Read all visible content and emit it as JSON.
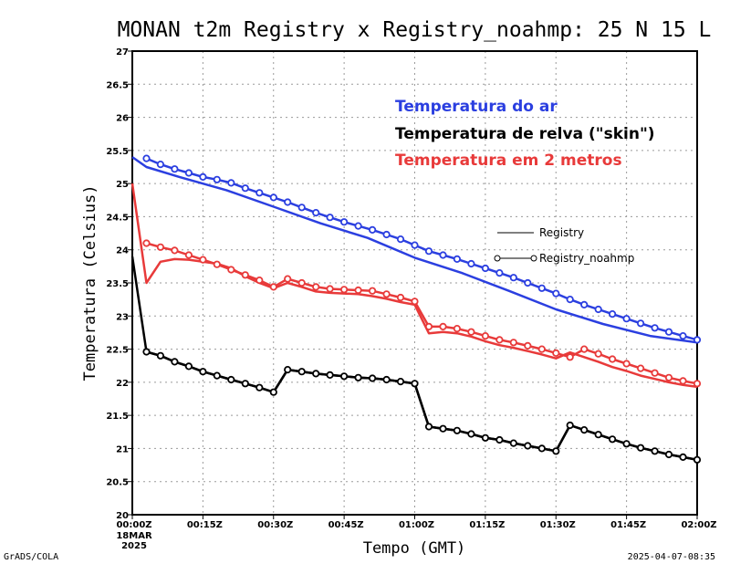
{
  "chart_data": {
    "type": "line",
    "title": "MONAN t2m Registry x Registry_noahmp: 25 N 15 L",
    "xlabel": "Tempo (GMT)",
    "ylabel": "Temperatura (Celsius)",
    "ylim": [
      20,
      27
    ],
    "xlim": [
      0,
      120
    ],
    "y_ticks": [
      "20",
      "20.5",
      "21",
      "21.5",
      "22",
      "22.5",
      "23",
      "23.5",
      "24",
      "24.5",
      "25",
      "25.5",
      "26",
      "26.5",
      "27"
    ],
    "x_ticks": [
      "00:00Z",
      "00:15Z",
      "00:30Z",
      "00:45Z",
      "01:00Z",
      "01:15Z",
      "01:30Z",
      "01:45Z",
      "02:00Z"
    ],
    "x_date_line1": "18MAR",
    "x_date_line2": "2025",
    "grid": true,
    "legend": [
      "Registry",
      "Registry_noahmp"
    ],
    "annotations": [
      "Temperatura do ar",
      "Temperatura de relva (\"skin\")",
      "Temperatura em 2 metros"
    ],
    "colors": {
      "air": "#2b3fe0",
      "skin": "#000000",
      "t2m": "#e83a3a"
    },
    "series": [
      {
        "name": "Temperatura do ar - Registry",
        "color": "#2b3fe0",
        "marker": false,
        "x": [
          0,
          3,
          10,
          20,
          30,
          40,
          50,
          60,
          70,
          80,
          90,
          100,
          110,
          120
        ],
        "values": [
          25.4,
          25.25,
          25.1,
          24.9,
          24.65,
          24.4,
          24.18,
          23.88,
          23.65,
          23.38,
          23.1,
          22.88,
          22.7,
          22.6
        ]
      },
      {
        "name": "Temperatura do ar - Registry_noahmp",
        "color": "#2b3fe0",
        "marker": true,
        "x": [
          3,
          6,
          9,
          12,
          15,
          18,
          21,
          24,
          27,
          30,
          33,
          36,
          39,
          42,
          45,
          48,
          51,
          54,
          57,
          60,
          63,
          66,
          69,
          72,
          75,
          78,
          81,
          84,
          87,
          90,
          93,
          96,
          99,
          102,
          105,
          108,
          111,
          114,
          117,
          120
        ],
        "values": [
          25.38,
          25.29,
          25.22,
          25.16,
          25.1,
          25.06,
          25.01,
          24.93,
          24.86,
          24.79,
          24.72,
          24.64,
          24.56,
          24.49,
          24.42,
          24.36,
          24.3,
          24.23,
          24.16,
          24.07,
          23.98,
          23.92,
          23.86,
          23.79,
          23.72,
          23.65,
          23.58,
          23.5,
          23.42,
          23.34,
          23.25,
          23.17,
          23.1,
          23.03,
          22.96,
          22.89,
          22.82,
          22.76,
          22.7,
          22.64
        ]
      },
      {
        "name": "Temperatura de relva (\"skin\") - Registry",
        "color": "#000000",
        "marker": false,
        "x": [
          0,
          3,
          6,
          9,
          12,
          15,
          18,
          21,
          24,
          27,
          30,
          33,
          36,
          39,
          42,
          45,
          48,
          51,
          54,
          57,
          60,
          63,
          66,
          69,
          72,
          75,
          78,
          81,
          84,
          87,
          90,
          93,
          96,
          99,
          102,
          105,
          108,
          111,
          114,
          117,
          120
        ],
        "values": [
          23.9,
          22.46,
          22.4,
          22.31,
          22.24,
          22.16,
          22.1,
          22.04,
          21.98,
          21.92,
          21.85,
          22.19,
          22.16,
          22.13,
          22.11,
          22.09,
          22.07,
          22.06,
          22.04,
          22.01,
          21.98,
          21.33,
          21.3,
          21.27,
          21.22,
          21.16,
          21.13,
          21.08,
          21.04,
          21.0,
          20.96,
          21.35,
          21.28,
          21.21,
          21.14,
          21.07,
          21.01,
          20.96,
          20.91,
          20.87,
          20.83
        ]
      },
      {
        "name": "Temperatura de relva (\"skin\") - Registry_noahmp",
        "color": "#000000",
        "marker": true,
        "x": [
          3,
          6,
          9,
          12,
          15,
          18,
          21,
          24,
          27,
          30,
          33,
          36,
          39,
          42,
          45,
          48,
          51,
          54,
          57,
          60,
          63,
          66,
          69,
          72,
          75,
          78,
          81,
          84,
          87,
          90,
          93,
          96,
          99,
          102,
          105,
          108,
          111,
          114,
          117,
          120
        ],
        "values": [
          22.46,
          22.4,
          22.31,
          22.24,
          22.16,
          22.1,
          22.04,
          21.98,
          21.92,
          21.85,
          22.19,
          22.16,
          22.13,
          22.11,
          22.09,
          22.07,
          22.06,
          22.04,
          22.01,
          21.98,
          21.33,
          21.3,
          21.27,
          21.22,
          21.16,
          21.13,
          21.08,
          21.04,
          21.0,
          20.96,
          21.35,
          21.28,
          21.21,
          21.14,
          21.07,
          21.01,
          20.96,
          20.91,
          20.87,
          20.83
        ]
      },
      {
        "name": "Temperatura em 2 metros - Registry",
        "color": "#e83a3a",
        "marker": false,
        "x": [
          0,
          3,
          6,
          9,
          12,
          15,
          18,
          21,
          24,
          27,
          30,
          33,
          36,
          39,
          42,
          45,
          48,
          51,
          54,
          57,
          60,
          63,
          66,
          69,
          72,
          75,
          78,
          81,
          84,
          87,
          90,
          93,
          96,
          99,
          102,
          105,
          108,
          111,
          114,
          117,
          120
        ],
        "values": [
          25.0,
          23.5,
          23.82,
          23.86,
          23.85,
          23.82,
          23.79,
          23.72,
          23.6,
          23.5,
          23.42,
          23.5,
          23.44,
          23.37,
          23.35,
          23.34,
          23.33,
          23.3,
          23.26,
          23.21,
          23.17,
          22.74,
          22.76,
          22.74,
          22.69,
          22.62,
          22.56,
          22.52,
          22.47,
          22.42,
          22.36,
          22.45,
          22.38,
          22.31,
          22.23,
          22.17,
          22.1,
          22.05,
          22.0,
          21.96,
          21.93
        ]
      },
      {
        "name": "Temperatura em 2 metros - Registry_noahmp",
        "color": "#e83a3a",
        "marker": true,
        "x": [
          3,
          6,
          9,
          12,
          15,
          18,
          21,
          24,
          27,
          30,
          33,
          36,
          39,
          42,
          45,
          48,
          51,
          54,
          57,
          60,
          63,
          66,
          69,
          72,
          75,
          78,
          81,
          84,
          87,
          90,
          93,
          96,
          99,
          102,
          105,
          108,
          111,
          114,
          117,
          120
        ],
        "values": [
          24.1,
          24.04,
          23.99,
          23.92,
          23.85,
          23.78,
          23.7,
          23.62,
          23.54,
          23.44,
          23.56,
          23.5,
          23.44,
          23.41,
          23.4,
          23.39,
          23.38,
          23.33,
          23.28,
          23.22,
          22.84,
          22.84,
          22.81,
          22.76,
          22.7,
          22.64,
          22.6,
          22.55,
          22.5,
          22.44,
          22.38,
          22.5,
          22.43,
          22.35,
          22.28,
          22.21,
          22.14,
          22.07,
          22.02,
          21.98
        ]
      }
    ]
  },
  "footer": {
    "left": "GrADS/COLA",
    "right": "2025-04-07-08:35"
  }
}
